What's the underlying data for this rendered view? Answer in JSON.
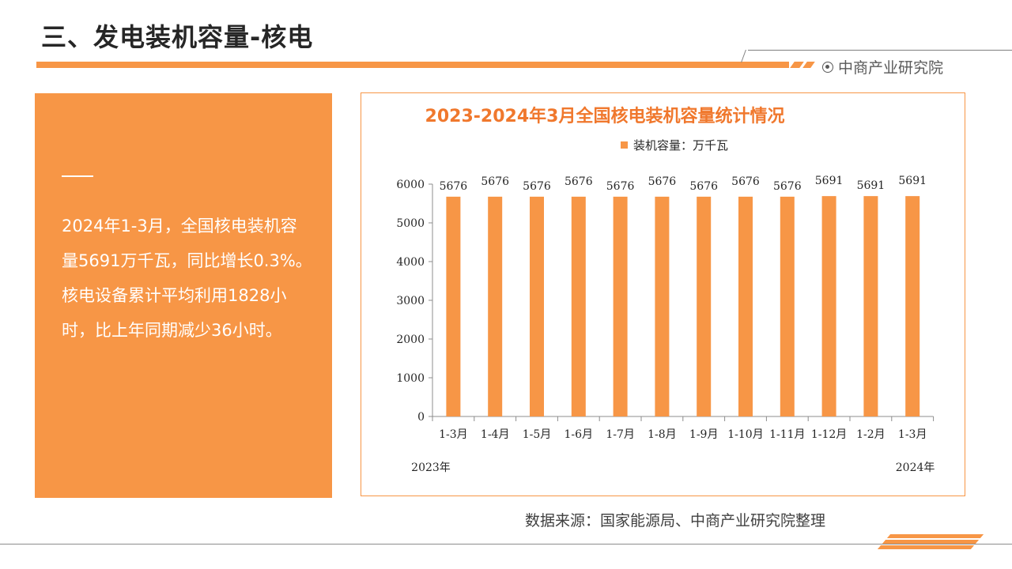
{
  "header": {
    "title": "三、发电装机容量-核电",
    "brand": "中商产业研究院"
  },
  "summary": {
    "text": "2024年1-3月，全国核电装机容量5691万千瓦，同比增长0.3%。核电设备累计平均利用1828小时，比上年同期减少36小时。"
  },
  "source": "数据来源：国家能源局、中商产业研究院整理",
  "colors": {
    "accent": "#f79646",
    "title": "#262626",
    "chart_title": "#f0782d"
  },
  "chart_data": {
    "type": "bar",
    "title": "2023-2024年3月全国核电装机容量统计情况",
    "categories": [
      "1-3月",
      "1-4月",
      "1-5月",
      "1-6月",
      "1-7月",
      "1-8月",
      "1-9月",
      "1-10月",
      "1-11月",
      "1-12月",
      "1-2月",
      "1-3月"
    ],
    "year_labels": [
      "2023年",
      "2024年"
    ],
    "series": [
      {
        "name": "装机容量：万千瓦",
        "color": "#f79646",
        "values": [
          5676,
          5676,
          5676,
          5676,
          5676,
          5676,
          5676,
          5676,
          5676,
          5691,
          5691,
          5691
        ]
      }
    ],
    "ylim": [
      0,
      6000
    ],
    "yticks": [
      0,
      1000,
      2000,
      3000,
      4000,
      5000,
      6000
    ],
    "grid": false,
    "legend_position": "top"
  }
}
